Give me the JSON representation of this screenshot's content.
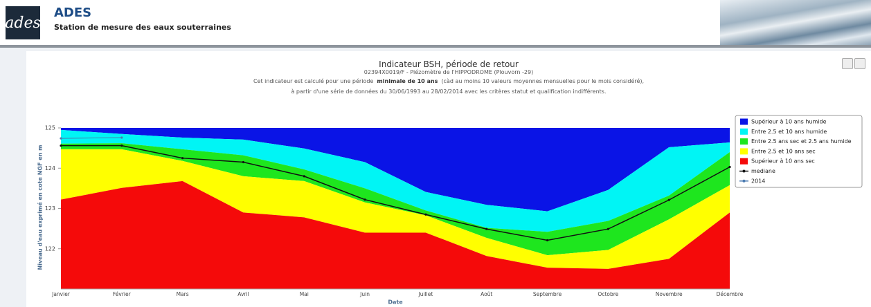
{
  "header": {
    "logo": "ades",
    "title": "ADES",
    "subtitle": "Station de mesure des eaux souterraines"
  },
  "chart_data": {
    "type": "area",
    "title": "Indicateur BSH, période de retour",
    "subtitle": "02394X0019/F - Piézomètre de l'HIPPODROME (Plouvorn -29)",
    "description": {
      "line1_start": "Cet indicateur est calculé pour une période",
      "line1_bold": "minimale de 10 ans",
      "line1_end": "(càd au moins 10 valeurs moyennes mensuelles pour le mois considéré),",
      "line2": "à partir d'une série de données du 30/06/1993 au 28/02/2014 avec les critères statut et qualification indifférents."
    },
    "x_label": "Date",
    "y_label": "Niveau d'eau exprimé en cote NGF en m",
    "categories": [
      "Janvier",
      "Février",
      "Mars",
      "Avril",
      "Mai",
      "Juin",
      "Juillet",
      "Août",
      "Septembre",
      "Octobre",
      "Novembre",
      "Décembre"
    ],
    "ylim": [
      121,
      125
    ],
    "yticks": [
      122,
      123,
      124,
      125
    ],
    "legend": "right",
    "series": [
      {
        "name": "Supérieur à 10 ans humide",
        "type": "area",
        "color": "#0a14e6",
        "values": [
          125,
          125,
          125,
          125,
          125,
          125,
          125,
          125,
          125,
          125,
          125,
          125
        ]
      },
      {
        "name": "Entre 2.5 et 10 ans humide",
        "type": "area",
        "color": "#00f5f5",
        "values": [
          124.95,
          124.85,
          124.76,
          124.71,
          124.49,
          124.15,
          123.41,
          123.09,
          122.93,
          123.46,
          124.52,
          124.64
        ]
      },
      {
        "name": "Entre 2.5 ans sec et 2.5 ans humide",
        "type": "area",
        "color": "#1ee61e",
        "values": [
          124.61,
          124.62,
          124.47,
          124.32,
          123.97,
          123.5,
          122.95,
          122.52,
          122.42,
          122.69,
          123.32,
          124.4
        ]
      },
      {
        "name": "Entre 2.5 et 10 ans sec",
        "type": "area",
        "color": "#ffff00",
        "values": [
          124.47,
          124.47,
          124.18,
          123.8,
          123.68,
          123.15,
          122.83,
          122.27,
          121.84,
          121.97,
          122.73,
          123.58
        ]
      },
      {
        "name": "Supérieur à 10 ans sec",
        "type": "area",
        "color": "#f50a0a",
        "values": [
          123.22,
          123.51,
          123.68,
          122.9,
          122.78,
          122.4,
          122.4,
          121.82,
          121.53,
          121.5,
          121.75,
          122.9
        ]
      },
      {
        "name": "mediane",
        "type": "line",
        "color": "#111111",
        "values": [
          124.56,
          124.56,
          124.25,
          124.15,
          123.8,
          123.22,
          122.85,
          122.49,
          122.21,
          122.49,
          123.21,
          124.03
        ]
      },
      {
        "name": "2014",
        "type": "line",
        "color": "#4a7ab0",
        "values": [
          124.74,
          124.76,
          null,
          null,
          null,
          null,
          null,
          null,
          null,
          null,
          null,
          null
        ]
      }
    ]
  }
}
